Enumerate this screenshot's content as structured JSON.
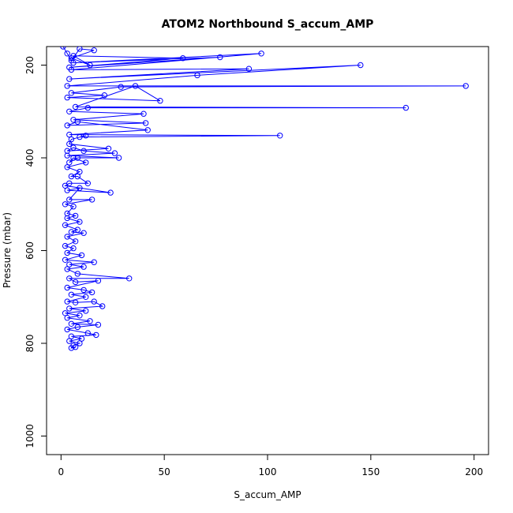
{
  "chart_data": {
    "type": "line",
    "title": "ATOM2 Northbound S_accum_AMP",
    "xlabel": "S_accum_AMP",
    "ylabel": "Pressure (mbar)",
    "xlim": [
      -7,
      207
    ],
    "ylim": [
      1040,
      160
    ],
    "y_reversed": true,
    "x_ticks": [
      0,
      50,
      100,
      150,
      200
    ],
    "y_ticks": [
      200,
      400,
      600,
      800,
      1000
    ],
    "grid": false,
    "legend": "none",
    "marker": "open-circle",
    "color": "#0000ff",
    "series": [
      {
        "points": [
          [
            1,
            160
          ],
          [
            3,
            175
          ],
          [
            5,
            190
          ],
          [
            9,
            165
          ],
          [
            16,
            168
          ],
          [
            5,
            185
          ],
          [
            14,
            200
          ],
          [
            6,
            180
          ],
          [
            59,
            185
          ],
          [
            4,
            205
          ],
          [
            77,
            183
          ],
          [
            6,
            195
          ],
          [
            97,
            175
          ],
          [
            5,
            210
          ],
          [
            91,
            208
          ],
          [
            4,
            230
          ],
          [
            145,
            200
          ],
          [
            66,
            222
          ],
          [
            3,
            245
          ],
          [
            196,
            245
          ],
          [
            29,
            247
          ],
          [
            5,
            260
          ],
          [
            21,
            265
          ],
          [
            3,
            270
          ],
          [
            48,
            277
          ],
          [
            36,
            245
          ],
          [
            7,
            290
          ],
          [
            167,
            292
          ],
          [
            13,
            292
          ],
          [
            4,
            300
          ],
          [
            40,
            305
          ],
          [
            6,
            318
          ],
          [
            41,
            325
          ],
          [
            3,
            330
          ],
          [
            8,
            322
          ],
          [
            42,
            340
          ],
          [
            4,
            350
          ],
          [
            106,
            352
          ],
          [
            9,
            355
          ],
          [
            12,
            352
          ],
          [
            5,
            360
          ],
          [
            4,
            370
          ],
          [
            23,
            380
          ],
          [
            3,
            385
          ],
          [
            6,
            378
          ],
          [
            11,
            385
          ],
          [
            26,
            390
          ],
          [
            3,
            395
          ],
          [
            28,
            400
          ],
          [
            8,
            400
          ],
          [
            4,
            410
          ],
          [
            6,
            400
          ],
          [
            12,
            410
          ],
          [
            3,
            420
          ],
          [
            9,
            430
          ],
          [
            5,
            440
          ],
          [
            8,
            440
          ],
          [
            13,
            455
          ],
          [
            4,
            455
          ],
          [
            2,
            460
          ],
          [
            24,
            475
          ],
          [
            3,
            470
          ],
          [
            9,
            465
          ],
          [
            4,
            490
          ],
          [
            15,
            490
          ],
          [
            2,
            500
          ],
          [
            6,
            505
          ],
          [
            3,
            520
          ],
          [
            7,
            525
          ],
          [
            3,
            530
          ],
          [
            9,
            538
          ],
          [
            2,
            545
          ],
          [
            8,
            555
          ],
          [
            5,
            560
          ],
          [
            11,
            562
          ],
          [
            3,
            570
          ],
          [
            7,
            580
          ],
          [
            2,
            590
          ],
          [
            6,
            595
          ],
          [
            3,
            605
          ],
          [
            10,
            610
          ],
          [
            2,
            620
          ],
          [
            16,
            625
          ],
          [
            4,
            630
          ],
          [
            11,
            635
          ],
          [
            3,
            640
          ],
          [
            8,
            650
          ],
          [
            33,
            660
          ],
          [
            4,
            660
          ],
          [
            7,
            668
          ],
          [
            18,
            665
          ],
          [
            3,
            680
          ],
          [
            11,
            685
          ],
          [
            15,
            690
          ],
          [
            5,
            695
          ],
          [
            12,
            700
          ],
          [
            3,
            710
          ],
          [
            7,
            712
          ],
          [
            16,
            710
          ],
          [
            20,
            720
          ],
          [
            4,
            725
          ],
          [
            12,
            730
          ],
          [
            2,
            735
          ],
          [
            9,
            740
          ],
          [
            3,
            745
          ],
          [
            14,
            752
          ],
          [
            5,
            758
          ],
          [
            18,
            760
          ],
          [
            8,
            765
          ],
          [
            3,
            770
          ],
          [
            13,
            778
          ],
          [
            17,
            782
          ],
          [
            5,
            785
          ],
          [
            10,
            790
          ],
          [
            4,
            795
          ],
          [
            9,
            800
          ],
          [
            6,
            805
          ],
          [
            5,
            810
          ],
          [
            7,
            808
          ]
        ]
      }
    ]
  }
}
